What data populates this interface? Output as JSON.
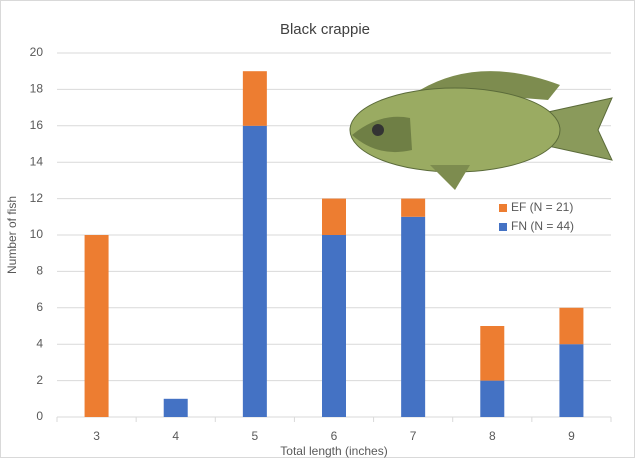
{
  "chart_data": {
    "type": "stacked-bar",
    "title": "Black crappie",
    "x_label": "Total length (inches)",
    "y_label": "Number of fish",
    "categories": [
      "3",
      "4",
      "5",
      "6",
      "7",
      "8",
      "9"
    ],
    "series": [
      {
        "name": "EF (N = 21)",
        "color": "#ed7d31",
        "values": [
          10,
          0,
          3,
          2,
          1,
          3,
          2
        ]
      },
      {
        "name": "FN (N = 44)",
        "color": "#4472c4",
        "values": [
          0,
          1,
          16,
          10,
          11,
          2,
          4
        ]
      }
    ],
    "ylim": [
      0,
      20
    ],
    "yticks": [
      0,
      2,
      4,
      6,
      8,
      10,
      12,
      14,
      16,
      18,
      20
    ],
    "grid": true
  }
}
